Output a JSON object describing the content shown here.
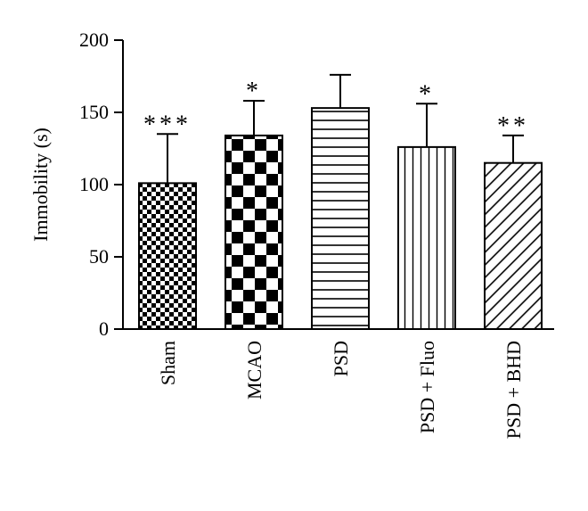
{
  "chart_data": {
    "type": "bar",
    "ylabel": "Immobility (s)",
    "ylim": [
      0,
      200
    ],
    "yticks": [
      "0",
      "50",
      "100",
      "150",
      "200"
    ],
    "categories": [
      "Sham",
      "MCAO",
      "PSD",
      "PSD + Fluo",
      "PSD + BHD"
    ],
    "values": [
      101,
      134,
      153,
      126,
      115
    ],
    "errors": [
      34,
      24,
      23,
      30,
      19
    ],
    "significance": [
      "***",
      "*",
      "",
      "*",
      "**"
    ],
    "patterns": [
      "small-checker",
      "large-checker",
      "horizontal-lines",
      "vertical-lines",
      "diagonal-lines"
    ],
    "grid": false,
    "legend": "none"
  }
}
